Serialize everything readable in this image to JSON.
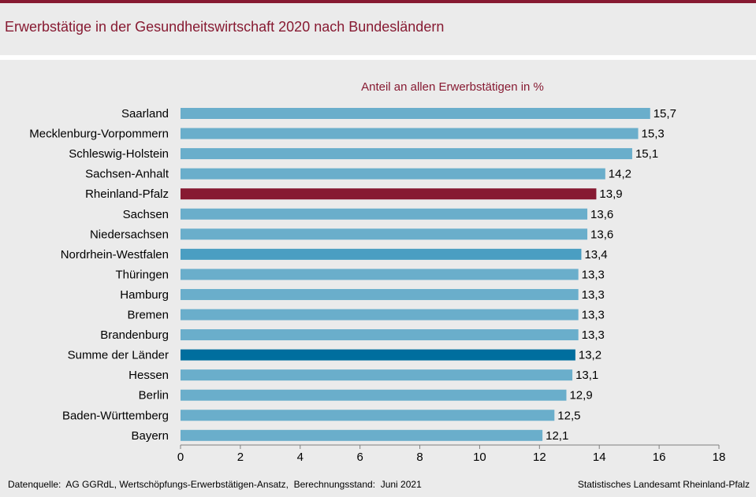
{
  "header": {
    "title": "Erwerbstätige in der Gesundheitswirtschaft 2020 nach Bundesländern"
  },
  "footer": {
    "source": "Datenquelle:  AG GGRdL, Wertschöpfungs-Erwerbstätigen-Ansatz,  Berechnungsstand:  Juni 2021",
    "publisher": "Statistisches Landesamt Rheinland-Pfalz"
  },
  "colors": {
    "default_bar": "#6aaecb",
    "highlight_rp": "#871a32",
    "highlight_nrw": "#4a9ec2",
    "total_bar": "#006e9e",
    "accent": "#871a32"
  },
  "chart_data": {
    "type": "bar",
    "orientation": "horizontal",
    "title": "Anteil an allen Erwerbstätigen in %",
    "xlabel": "",
    "ylabel": "",
    "xlim": [
      0,
      18
    ],
    "xticks": [
      0,
      2,
      4,
      6,
      8,
      10,
      12,
      14,
      16,
      18
    ],
    "grid": false,
    "categories": [
      "Saarland",
      "Mecklenburg-Vorpommern",
      "Schleswig-Holstein",
      "Sachsen-Anhalt",
      "Rheinland-Pfalz",
      "Sachsen",
      "Niedersachsen",
      "Nordrhein-Westfalen",
      "Thüringen",
      "Hamburg",
      "Bremen",
      "Brandenburg",
      "Summe der Länder",
      "Hessen",
      "Berlin",
      "Baden-Württemberg",
      "Bayern"
    ],
    "values": [
      15.7,
      15.3,
      15.1,
      14.2,
      13.9,
      13.6,
      13.6,
      13.4,
      13.3,
      13.3,
      13.3,
      13.3,
      13.2,
      13.1,
      12.9,
      12.5,
      12.1
    ],
    "value_labels": [
      "15,7",
      "15,3",
      "15,1",
      "14,2",
      "13,9",
      "13,6",
      "13,6",
      "13,4",
      "13,3",
      "13,3",
      "13,3",
      "13,3",
      "13,2",
      "13,1",
      "12,9",
      "12,5",
      "12,1"
    ],
    "bar_colors": [
      "default",
      "default",
      "default",
      "default",
      "highlight_rp",
      "default",
      "default",
      "highlight_nrw",
      "default",
      "default",
      "default",
      "default",
      "total_bar",
      "default",
      "default",
      "default",
      "default"
    ]
  }
}
